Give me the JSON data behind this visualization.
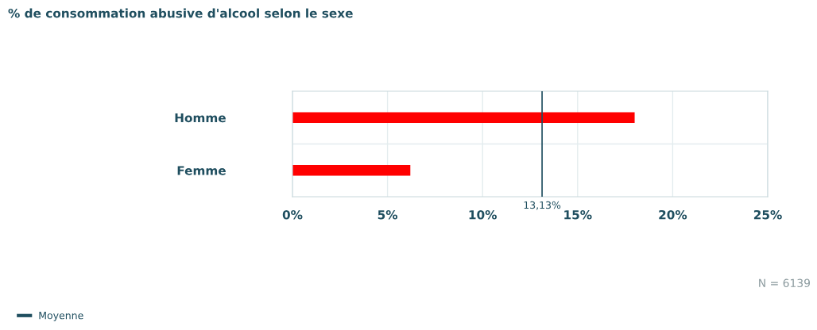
{
  "chart_data": {
    "type": "bar",
    "orientation": "horizontal",
    "title": "% de consommation abusive d'alcool selon le sexe",
    "categories": [
      "Homme",
      "Femme"
    ],
    "values": [
      18.0,
      6.2
    ],
    "color": "#ff0000",
    "xlim": [
      0,
      25
    ],
    "xticks": [
      {
        "value": 0,
        "label": "0%"
      },
      {
        "value": 5,
        "label": "5%"
      },
      {
        "value": 10,
        "label": "10%"
      },
      {
        "value": 15,
        "label": "15%"
      },
      {
        "value": 20,
        "label": "20%"
      },
      {
        "value": 25,
        "label": "25%"
      }
    ],
    "grid": "x",
    "ref_lines": [
      {
        "axis": "x",
        "value": 13.13,
        "label": "Moyenne",
        "color": "#1f4e5f"
      }
    ],
    "annotations": [
      "13,13%",
      "N = 6139"
    ],
    "legend": "bottom left"
  }
}
